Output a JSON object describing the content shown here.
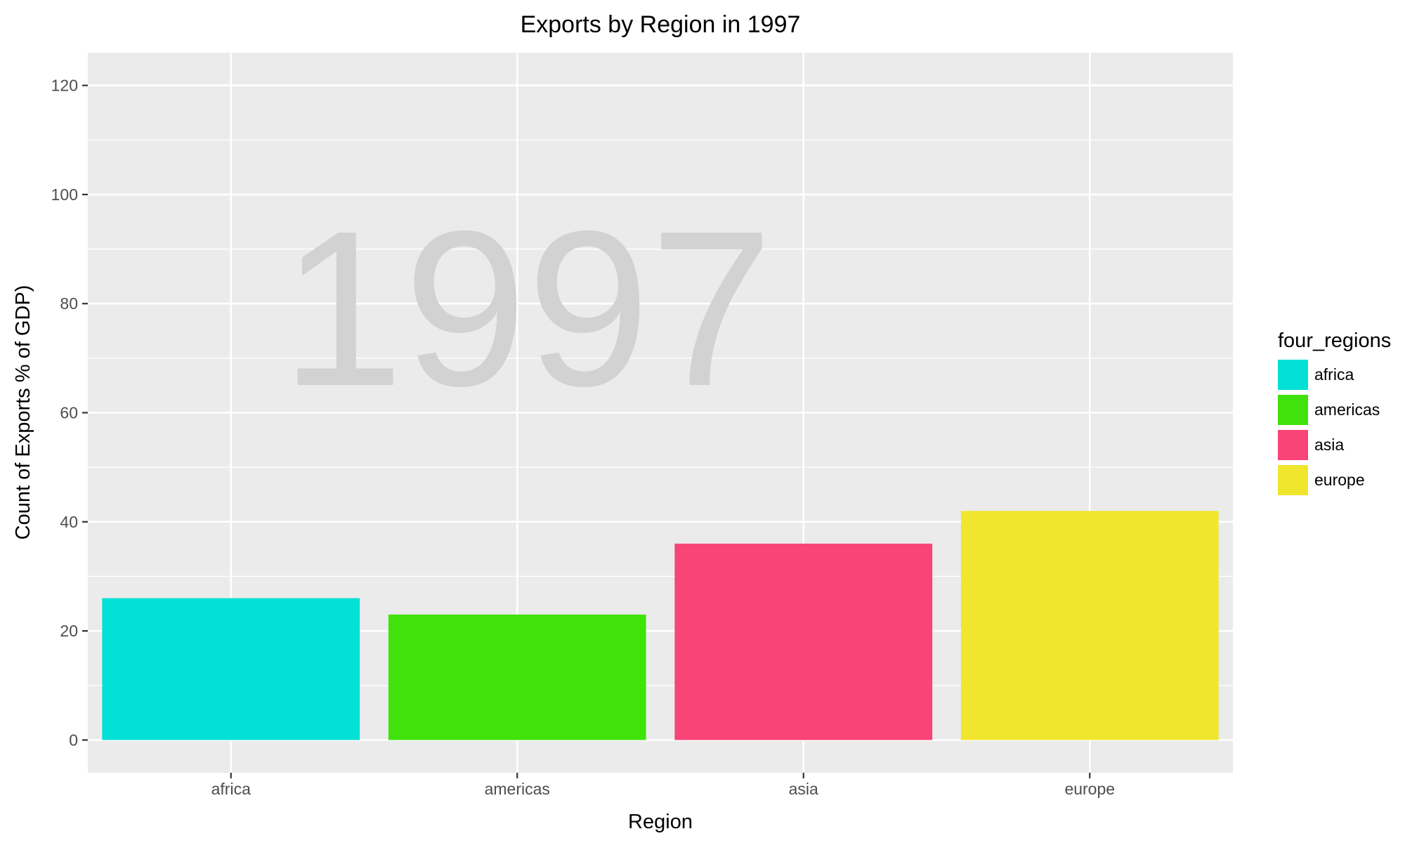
{
  "chart_data": {
    "type": "bar",
    "title": "Exports by Region in 1997",
    "xlabel": "Region",
    "ylabel": "Count of Exports % of GDP)",
    "watermark": "1997",
    "categories": [
      "africa",
      "americas",
      "asia",
      "europe"
    ],
    "values": [
      26,
      23,
      36,
      42
    ],
    "colors": [
      "#03E0D6",
      "#40E20B",
      "#F84476",
      "#F0E62E"
    ],
    "ylim": [
      -6,
      126
    ],
    "yticks": [
      0,
      20,
      40,
      60,
      80,
      100,
      120
    ],
    "grid": true,
    "panel_background": "#EBEBEB",
    "legend": {
      "title": "four_regions",
      "position": "right",
      "items": [
        "africa",
        "americas",
        "asia",
        "europe"
      ]
    }
  }
}
